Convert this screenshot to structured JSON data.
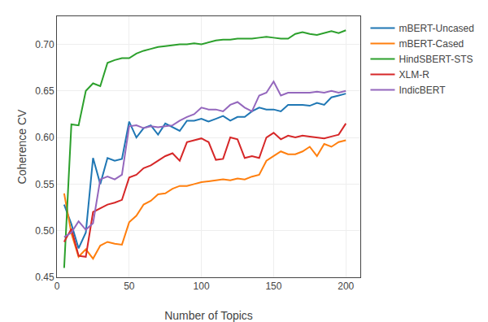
{
  "chart_data": {
    "type": "line",
    "xlabel": "Number of Topics",
    "ylabel": "Coherence CV",
    "xlim": [
      0,
      210
    ],
    "ylim": [
      0.45,
      0.73
    ],
    "xticks": [
      0,
      50,
      100,
      150,
      200
    ],
    "yticks": [
      0.45,
      {
        "value": 0.5,
        "label": "0.50"
      },
      0.55,
      {
        "value": 0.6,
        "label": "0.60"
      },
      0.65,
      {
        "value": 0.7,
        "label": "0.70"
      }
    ],
    "grid": true,
    "legend": "right",
    "x": [
      5,
      10,
      15,
      20,
      25,
      30,
      35,
      40,
      45,
      50,
      55,
      60,
      65,
      70,
      75,
      80,
      85,
      90,
      95,
      100,
      105,
      110,
      115,
      120,
      125,
      130,
      135,
      140,
      145,
      150,
      155,
      160,
      165,
      170,
      175,
      180,
      185,
      190,
      195,
      200
    ],
    "series": [
      {
        "name": "mBERT-Uncased",
        "values": [
          0.528,
          0.507,
          0.481,
          0.498,
          0.578,
          0.55,
          0.578,
          0.575,
          0.577,
          0.617,
          0.6,
          0.61,
          0.613,
          0.603,
          0.615,
          0.611,
          0.607,
          0.618,
          0.618,
          0.62,
          0.617,
          0.62,
          0.623,
          0.618,
          0.622,
          0.622,
          0.628,
          0.632,
          0.63,
          0.63,
          0.628,
          0.635,
          0.635,
          0.635,
          0.634,
          0.637,
          0.635,
          0.643,
          0.645,
          0.647
        ]
      },
      {
        "name": "mBERT-Cased",
        "values": [
          0.54,
          0.497,
          0.472,
          0.48,
          0.47,
          0.484,
          0.488,
          0.486,
          0.485,
          0.509,
          0.516,
          0.528,
          0.532,
          0.539,
          0.54,
          0.545,
          0.548,
          0.548,
          0.55,
          0.552,
          0.553,
          0.554,
          0.555,
          0.554,
          0.556,
          0.555,
          0.558,
          0.56,
          0.575,
          0.58,
          0.585,
          0.582,
          0.582,
          0.585,
          0.59,
          0.58,
          0.593,
          0.59,
          0.595,
          0.597
        ]
      },
      {
        "name": "HindSBERT-STS",
        "values": [
          0.46,
          0.614,
          0.613,
          0.65,
          0.658,
          0.655,
          0.68,
          0.683,
          0.685,
          0.685,
          0.69,
          0.693,
          0.695,
          0.697,
          0.698,
          0.699,
          0.7,
          0.7,
          0.701,
          0.7,
          0.702,
          0.704,
          0.705,
          0.705,
          0.706,
          0.706,
          0.706,
          0.707,
          0.708,
          0.707,
          0.706,
          0.706,
          0.711,
          0.713,
          0.711,
          0.71,
          0.712,
          0.714,
          0.712,
          0.715
        ]
      },
      {
        "name": "XLM-R",
        "values": [
          0.488,
          0.502,
          0.473,
          0.472,
          0.52,
          0.524,
          0.528,
          0.53,
          0.533,
          0.557,
          0.56,
          0.567,
          0.57,
          0.575,
          0.58,
          0.583,
          0.575,
          0.595,
          0.597,
          0.599,
          0.595,
          0.576,
          0.577,
          0.6,
          0.598,
          0.578,
          0.58,
          0.578,
          0.6,
          0.605,
          0.598,
          0.602,
          0.6,
          0.602,
          0.601,
          0.6,
          0.599,
          0.601,
          0.603,
          0.615
        ]
      },
      {
        "name": "IndicBERT",
        "values": [
          0.493,
          0.498,
          0.51,
          0.501,
          0.508,
          0.555,
          0.558,
          0.555,
          0.56,
          0.612,
          0.613,
          0.61,
          0.612,
          0.611,
          0.612,
          0.613,
          0.618,
          0.622,
          0.625,
          0.632,
          0.63,
          0.63,
          0.628,
          0.635,
          0.638,
          0.632,
          0.628,
          0.645,
          0.648,
          0.66,
          0.645,
          0.648,
          0.648,
          0.648,
          0.648,
          0.649,
          0.648,
          0.65,
          0.648,
          0.65
        ]
      }
    ]
  }
}
